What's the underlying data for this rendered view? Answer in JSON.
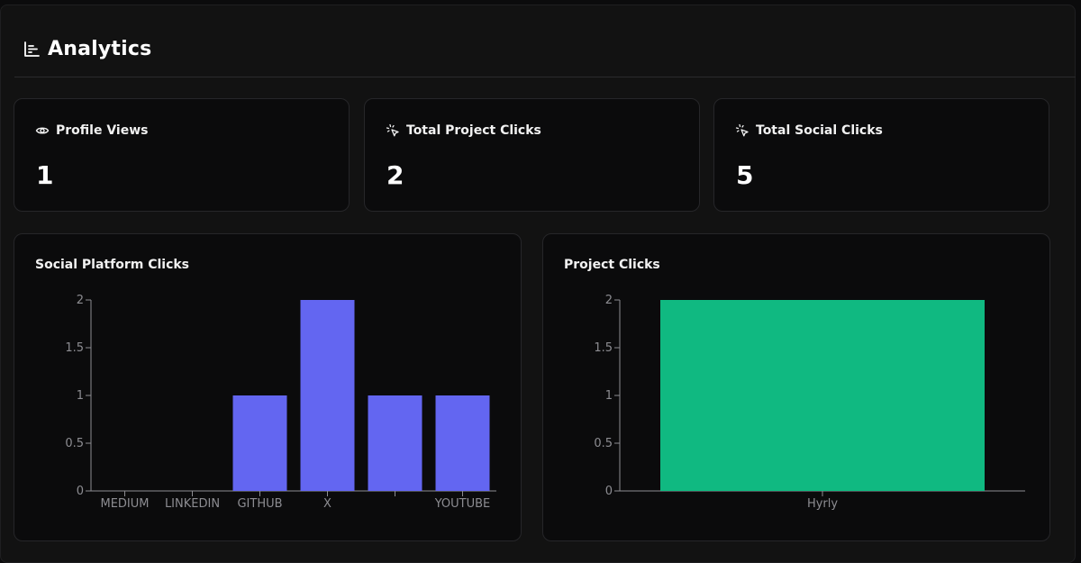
{
  "header": {
    "title": "Analytics",
    "icon": "bar-chart-icon"
  },
  "stats": [
    {
      "label": "Profile Views",
      "value": "1",
      "icon": "eye-icon"
    },
    {
      "label": "Total Project Clicks",
      "value": "2",
      "icon": "cursor-click-icon"
    },
    {
      "label": "Total Social Clicks",
      "value": "5",
      "icon": "cursor-click-icon"
    }
  ],
  "colors": {
    "social_bar": "#6366f1",
    "project_bar": "#10b981"
  },
  "chart_data": [
    {
      "type": "bar",
      "title": "Social Platform Clicks",
      "categories": [
        "MEDIUM",
        "LINKEDIN",
        "GITHUB",
        "X",
        "",
        "YOUTUBE"
      ],
      "values": [
        0,
        0,
        1,
        2,
        1,
        1
      ],
      "yticks": [
        "0",
        "0.5",
        "1",
        "1.5",
        "2"
      ],
      "ylim": [
        0,
        2
      ]
    },
    {
      "type": "bar",
      "title": "Project Clicks",
      "categories": [
        "Hyrly"
      ],
      "values": [
        2
      ],
      "yticks": [
        "0",
        "0.5",
        "1",
        "1.5",
        "2"
      ],
      "ylim": [
        0,
        2
      ]
    }
  ]
}
